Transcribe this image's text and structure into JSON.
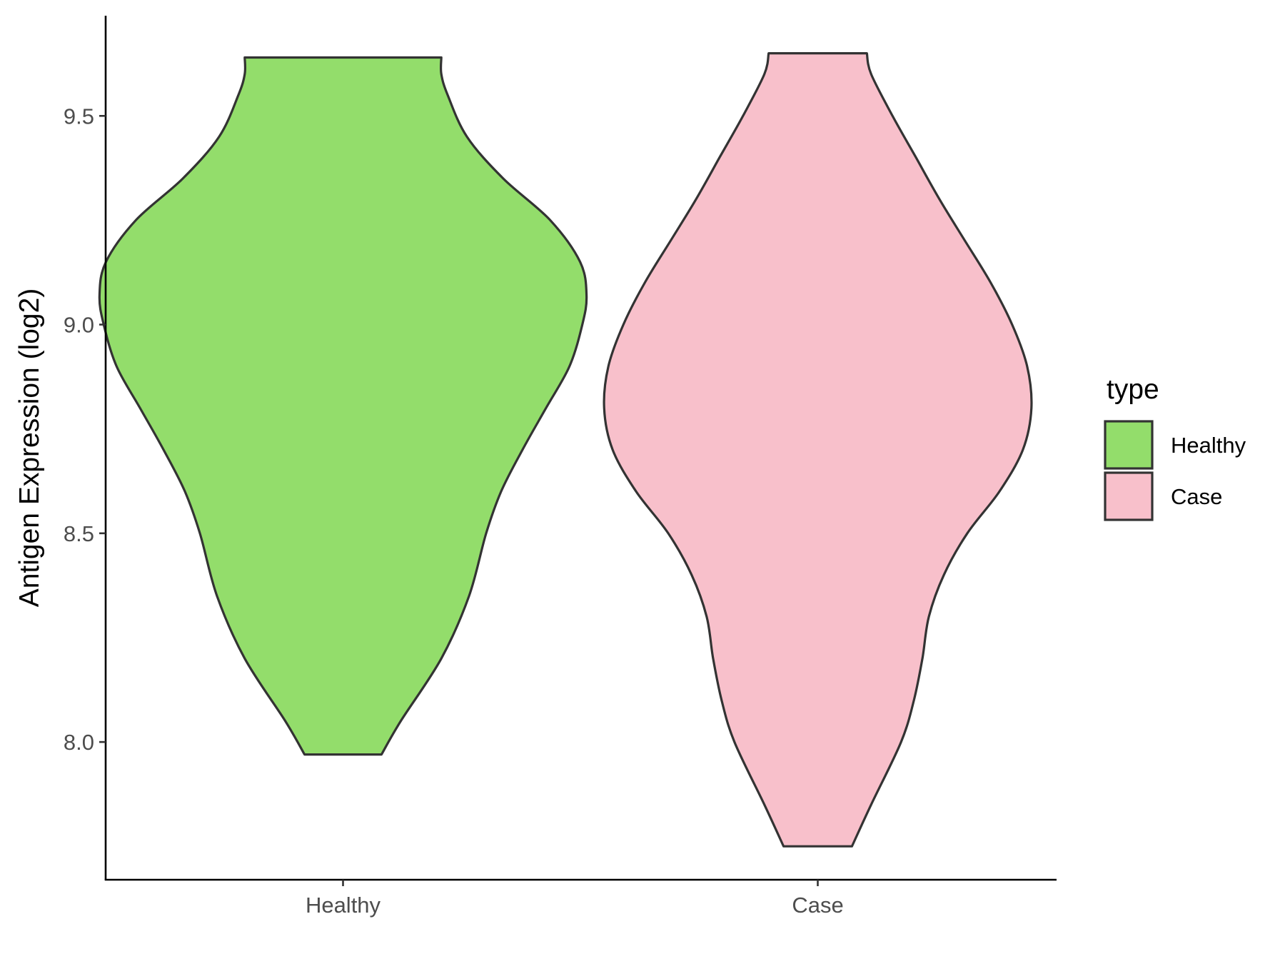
{
  "chart_data": {
    "type": "violin",
    "title": "",
    "xlabel": "",
    "ylabel": "Antigen Expression (log2)",
    "ylim": [
      7.67,
      9.74
    ],
    "yticks": [
      8.0,
      8.5,
      9.0,
      9.5
    ],
    "ytick_labels": [
      "8.0",
      "8.5",
      "9.0",
      "9.5"
    ],
    "grid": false,
    "categories": [
      "Healthy",
      "Case"
    ],
    "legend": {
      "title": "type",
      "placement": "right",
      "entries": [
        "Healthy",
        "Case"
      ]
    },
    "series": [
      {
        "name": "Healthy",
        "color": "#93dd6b",
        "min": 7.97,
        "max": 9.64,
        "density": [
          [
            7.97,
            0.18
          ],
          [
            8.05,
            0.27
          ],
          [
            8.2,
            0.46
          ],
          [
            8.35,
            0.59
          ],
          [
            8.5,
            0.67
          ],
          [
            8.6,
            0.74
          ],
          [
            8.7,
            0.84
          ],
          [
            8.8,
            0.95
          ],
          [
            8.9,
            1.06
          ],
          [
            9.0,
            1.12
          ],
          [
            9.07,
            1.14
          ],
          [
            9.15,
            1.11
          ],
          [
            9.25,
            0.97
          ],
          [
            9.35,
            0.75
          ],
          [
            9.45,
            0.58
          ],
          [
            9.55,
            0.49
          ],
          [
            9.6,
            0.46
          ],
          [
            9.64,
            0.46
          ]
        ]
      },
      {
        "name": "Case",
        "color": "#f8c0cb",
        "min": 7.75,
        "max": 9.65,
        "density": [
          [
            7.75,
            0.16
          ],
          [
            7.85,
            0.25
          ],
          [
            8.0,
            0.39
          ],
          [
            8.1,
            0.45
          ],
          [
            8.2,
            0.49
          ],
          [
            8.3,
            0.52
          ],
          [
            8.4,
            0.59
          ],
          [
            8.5,
            0.7
          ],
          [
            8.6,
            0.85
          ],
          [
            8.7,
            0.96
          ],
          [
            8.8,
            1.0
          ],
          [
            8.9,
            0.98
          ],
          [
            9.0,
            0.91
          ],
          [
            9.1,
            0.81
          ],
          [
            9.2,
            0.69
          ],
          [
            9.3,
            0.57
          ],
          [
            9.4,
            0.46
          ],
          [
            9.5,
            0.35
          ],
          [
            9.6,
            0.25
          ],
          [
            9.65,
            0.23
          ]
        ]
      }
    ]
  }
}
